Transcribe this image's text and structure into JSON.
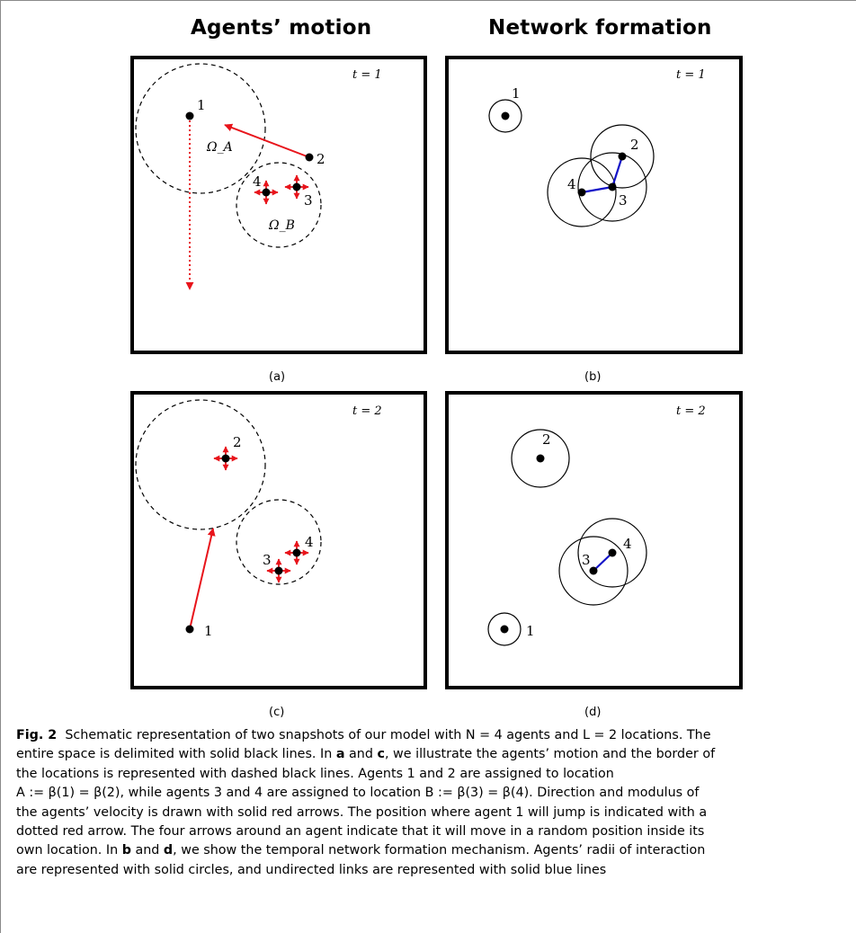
{
  "figure": {
    "column_titles": [
      "Agents’ motion",
      "Network formation"
    ],
    "panels": [
      {
        "id": "a",
        "label": "(a)",
        "time_label": "t = 1",
        "agent_labels": [
          "1",
          "2",
          "3",
          "4"
        ],
        "location_labels": [
          "Ω_A",
          "Ω_B"
        ]
      },
      {
        "id": "b",
        "label": "(b)",
        "time_label": "t = 1",
        "agent_labels": [
          "1",
          "2",
          "3",
          "4"
        ]
      },
      {
        "id": "c",
        "label": "(c)",
        "time_label": "t = 2",
        "agent_labels": [
          "1",
          "2",
          "3",
          "4"
        ]
      },
      {
        "id": "d",
        "label": "(d)",
        "time_label": "t = 2",
        "agent_labels": [
          "1",
          "2",
          "3",
          "4"
        ]
      }
    ],
    "colors": {
      "velocity_arrow": "#e8141b",
      "link": "#1414c8",
      "border": "#000000"
    }
  },
  "caption": {
    "fig_label": "Fig. 2",
    "line1": "Schematic representation of two snapshots of our model with N = 4 agents and L = 2 locations. The",
    "line2_a": "entire space is delimited with solid black lines. In ",
    "line2_b": "a",
    "line2_c": " and ",
    "line2_d": "c",
    "line2_e": ", we illustrate the agents’ motion and the border of",
    "line3": "the locations is represented with dashed black lines. Agents 1 and 2 are assigned to location",
    "line4": "A := β(1) = β(2), while agents 3 and 4 are assigned to location B := β(3) = β(4). Direction and modulus of",
    "line5": "the agents’ velocity is drawn with solid red arrows. The position where agent 1 will jump is indicated with a",
    "line6": "dotted red arrow. The four arrows around an agent indicate that it will move in a random position inside its",
    "line7_a": "own location. In ",
    "line7_b": "b",
    "line7_c": " and ",
    "line7_d": "d",
    "line7_e": ", we show the temporal network formation mechanism. Agents’ radii of interaction",
    "line8": "are represented with solid circles, and undirected links are represented with solid blue lines"
  }
}
